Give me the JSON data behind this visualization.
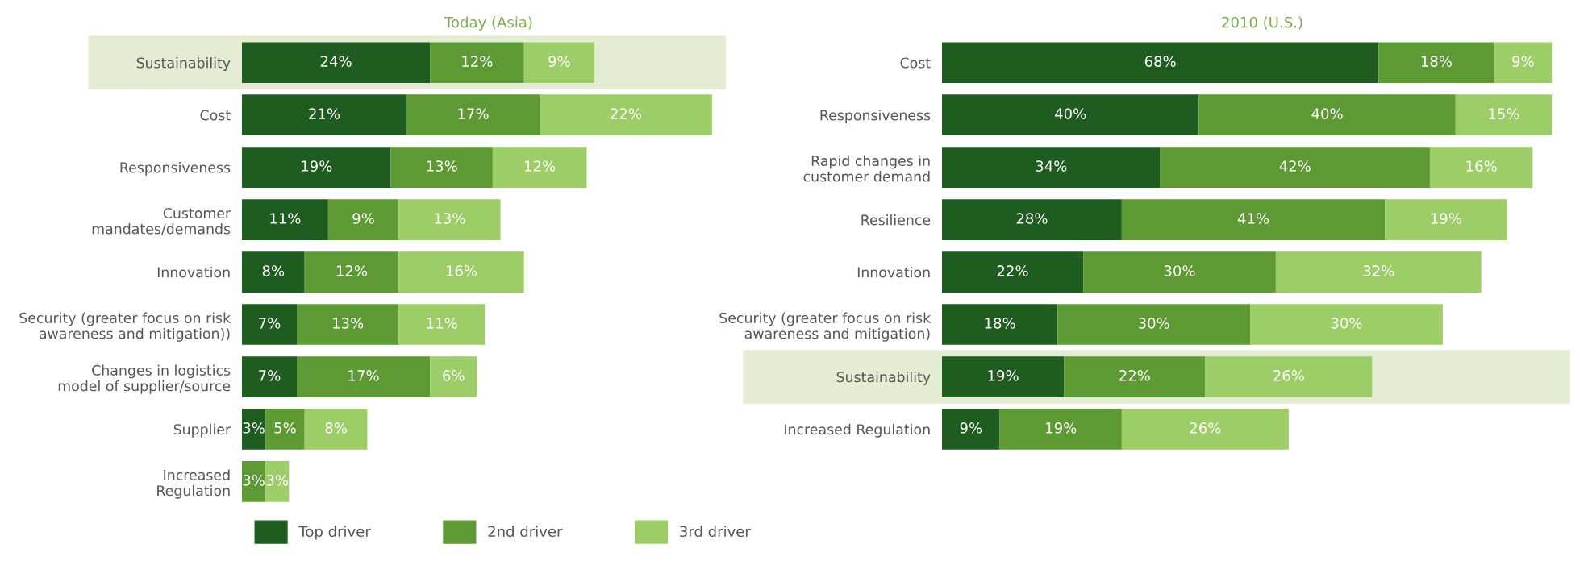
{
  "chart_data": [
    {
      "type": "bar",
      "title": "Today (Asia)",
      "orientation": "horizontal",
      "stacked": true,
      "legend": "bottom",
      "grid": false,
      "categories": [
        "Sustainability",
        "Cost",
        "Responsiveness",
        "Customer\nmandates/demands",
        "Innovation",
        "Security (greater focus on risk\nawareness and mitigation))",
        "Changes in logistics\nmodel of supplier/source",
        "Supplier",
        "Increased\nRegulation"
      ],
      "bands": [
        {
          "axis": "y",
          "from": "Sustainability",
          "to": "Sustainability",
          "color": "#e4edd3"
        }
      ],
      "series": [
        {
          "name": "Top driver",
          "color": "#1f5c1f",
          "values": [
            24,
            21,
            19,
            11,
            8,
            7,
            7,
            3,
            null
          ],
          "value_labels": [
            "24%",
            "21%",
            "19%",
            "11%",
            "8%",
            "7%",
            "7%",
            "3%",
            null
          ]
        },
        {
          "name": "2nd driver",
          "color": "#5e9a33",
          "values": [
            12,
            17,
            13,
            9,
            12,
            13,
            17,
            5,
            3
          ],
          "value_labels": [
            "12%",
            "17%",
            "13%",
            "9%",
            "12%",
            "13%",
            "17%",
            "5%",
            "3%"
          ]
        },
        {
          "name": "3rd driver",
          "color": "#9ccd66",
          "values": [
            9,
            22,
            12,
            13,
            16,
            11,
            6,
            8,
            3
          ],
          "value_labels": [
            "9%",
            "22%",
            "12%",
            "13%",
            "16%",
            "11%",
            "6%",
            "8%",
            "3%"
          ]
        }
      ]
    },
    {
      "type": "bar",
      "title": "2010 (U.S.)",
      "orientation": "horizontal",
      "stacked": true,
      "grid": false,
      "categories": [
        "Cost",
        "Responsiveness",
        "Rapid changes in\ncustomer demand",
        "Resilience",
        "Innovation",
        "Security (greater focus on risk\nawareness and mitigation)",
        "Sustainability",
        "Increased Regulation"
      ],
      "bands": [
        {
          "axis": "y",
          "from": "Sustainability",
          "to": "Sustainability",
          "color": "#e4edd3"
        }
      ],
      "series": [
        {
          "color": "#1f5c1f",
          "values": [
            68,
            40,
            34,
            28,
            22,
            18,
            19,
            9
          ],
          "value_labels": [
            "68%",
            "40%",
            "34%",
            "28%",
            "22%",
            "18%",
            "19%",
            "9%"
          ]
        },
        {
          "color": "#5e9a33",
          "values": [
            18,
            40,
            42,
            41,
            30,
            30,
            22,
            19
          ],
          "value_labels": [
            "18%",
            "40%",
            "42%",
            "41%",
            "30%",
            "30%",
            "22%",
            "19%"
          ]
        },
        {
          "color": "#9ccd66",
          "values": [
            9,
            15,
            16,
            19,
            32,
            30,
            26,
            26
          ],
          "value_labels": [
            "9%",
            "15%",
            "16%",
            "19%",
            "32%",
            "30%",
            "26%",
            "26%"
          ]
        }
      ]
    }
  ]
}
